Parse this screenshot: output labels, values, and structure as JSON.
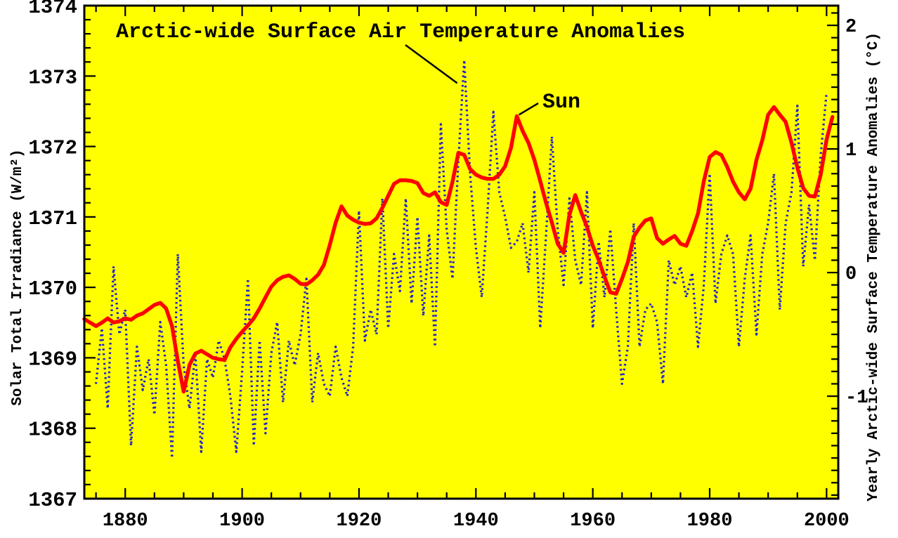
{
  "chart_data": {
    "type": "line",
    "title": "Arctic-wide Surface Air Temperature Anomalies",
    "plot_background_color": "#ffff00",
    "outer_background_color": "#ffffff",
    "grid": "off",
    "legend_position": "none (inline annotations with leader lines)",
    "x_axis": {
      "label": "",
      "domain": [
        1873,
        2002
      ],
      "ticks": [
        1880,
        1900,
        1920,
        1940,
        1960,
        1980,
        2000
      ],
      "tick_labels": [
        "1880",
        "1900",
        "1920",
        "1940",
        "1960",
        "1980",
        "2000"
      ],
      "minor_step": 5
    },
    "left_axis": {
      "label": "Solar Total Irradiance (W/m²)",
      "domain": [
        1367,
        1374
      ],
      "ticks": [
        1374,
        1373,
        1372,
        1371,
        1370,
        1369,
        1368,
        1367
      ],
      "tick_labels": [
        "1374",
        "1373",
        "1372",
        "1371",
        "1370",
        "1369",
        "1368",
        "1367"
      ],
      "minor_step": 0.2
    },
    "right_axis": {
      "label": "Yearly Arctic-wide Surface Temperature Anomalies (°C)",
      "ticks": [
        2,
        1,
        0,
        -1
      ],
      "tick_labels": [
        "2",
        "1",
        "0",
        "-1"
      ],
      "minor_step": 0.1,
      "minor_range": [
        -1.8,
        2.1
      ],
      "align": {
        "zero_irradiance": 1370.21,
        "irradiance_per_degC": 1.755
      }
    },
    "annotations": {
      "title_leader": {
        "points_to_series": "temperature",
        "points_to_year": 1938
      },
      "sun_label": {
        "text": "Sun",
        "points_to_series": "solar",
        "points_to_year": 1947
      }
    },
    "series": [
      {
        "name": "temperature",
        "display_name": "Arctic-wide Surface Air Temperature Anomalies",
        "axis": "right",
        "units": "degC",
        "color": "#2222cc",
        "style": "dotted",
        "start_year": 1875,
        "values": [
          -0.9,
          -0.45,
          -1.1,
          0.05,
          -0.5,
          -0.3,
          -1.4,
          -0.6,
          -0.95,
          -0.7,
          -1.15,
          -0.4,
          -0.75,
          -1.5,
          0.15,
          -0.75,
          -1.1,
          -0.65,
          -1.45,
          -0.7,
          -0.85,
          -0.55,
          -0.7,
          -1.0,
          -1.45,
          -0.8,
          -0.05,
          -1.4,
          -0.55,
          -1.3,
          -0.65,
          -0.4,
          -1.05,
          -0.55,
          -0.75,
          -0.5,
          -0.05,
          -1.05,
          -0.65,
          -0.9,
          -1.0,
          -0.6,
          -0.85,
          -1.0,
          -0.6,
          0.5,
          -0.55,
          -0.3,
          -0.5,
          0.6,
          -0.45,
          0.15,
          -0.15,
          0.6,
          -0.25,
          0.45,
          -0.35,
          0.3,
          -0.6,
          1.2,
          0.35,
          -0.05,
          0.9,
          1.72,
          0.8,
          0.2,
          -0.2,
          0.5,
          1.3,
          0.65,
          0.45,
          0.2,
          0.25,
          0.4,
          0.0,
          0.65,
          -0.45,
          0.3,
          1.1,
          0.35,
          -0.1,
          0.6,
          0.1,
          -0.1,
          0.65,
          -0.45,
          0.25,
          -0.2,
          0.35,
          -0.3,
          -0.9,
          -0.6,
          0.4,
          -0.6,
          -0.3,
          -0.25,
          -0.4,
          -0.9,
          0.1,
          -0.1,
          0.05,
          -0.2,
          0.0,
          -0.6,
          -0.1,
          0.8,
          -0.25,
          0.15,
          0.3,
          0.15,
          -0.6,
          -0.05,
          0.3,
          -0.5,
          0.15,
          0.4,
          0.8,
          -0.3,
          0.4,
          0.65,
          1.35,
          0.05,
          0.55,
          0.1,
          0.95,
          1.46
        ]
      },
      {
        "name": "solar",
        "display_name": "Sun",
        "axis": "left",
        "units": "W/m2",
        "color": "#ff0000",
        "style": "solid",
        "start_year": 1873,
        "values": [
          1369.55,
          1369.5,
          1369.45,
          1369.5,
          1369.56,
          1369.5,
          1369.52,
          1369.56,
          1369.54,
          1369.6,
          1369.63,
          1369.69,
          1369.75,
          1369.78,
          1369.7,
          1369.45,
          1368.95,
          1368.52,
          1368.9,
          1369.06,
          1369.1,
          1369.05,
          1369.0,
          1368.98,
          1368.97,
          1369.15,
          1369.27,
          1369.37,
          1369.46,
          1369.56,
          1369.7,
          1369.86,
          1370.01,
          1370.1,
          1370.15,
          1370.17,
          1370.12,
          1370.05,
          1370.04,
          1370.1,
          1370.18,
          1370.32,
          1370.6,
          1370.92,
          1371.15,
          1371.02,
          1370.96,
          1370.92,
          1370.9,
          1370.91,
          1370.98,
          1371.13,
          1371.3,
          1371.47,
          1371.52,
          1371.52,
          1371.51,
          1371.48,
          1371.34,
          1371.3,
          1371.35,
          1371.21,
          1371.17,
          1371.5,
          1371.91,
          1371.88,
          1371.68,
          1371.6,
          1371.56,
          1371.54,
          1371.54,
          1371.6,
          1371.72,
          1371.98,
          1372.43,
          1372.22,
          1372.05,
          1371.81,
          1371.51,
          1371.2,
          1370.92,
          1370.62,
          1370.49,
          1371.03,
          1371.31,
          1371.07,
          1370.86,
          1370.59,
          1370.39,
          1370.15,
          1369.93,
          1369.91,
          1370.12,
          1370.36,
          1370.72,
          1370.85,
          1370.95,
          1370.98,
          1370.7,
          1370.62,
          1370.68,
          1370.73,
          1370.62,
          1370.59,
          1370.8,
          1371.05,
          1371.51,
          1371.85,
          1371.92,
          1371.88,
          1371.71,
          1371.5,
          1371.35,
          1371.25,
          1371.4,
          1371.81,
          1372.09,
          1372.45,
          1372.56,
          1372.45,
          1372.35,
          1372.05,
          1371.7,
          1371.41,
          1371.3,
          1371.29,
          1371.6,
          1372.1,
          1372.42
        ]
      }
    ]
  }
}
